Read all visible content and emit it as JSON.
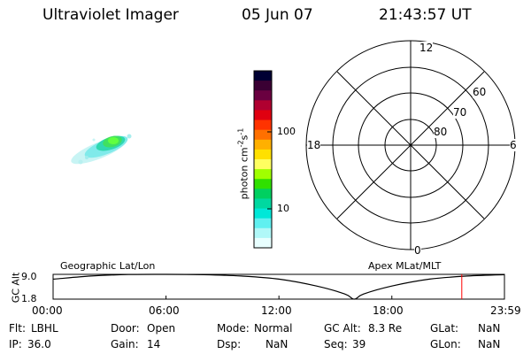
{
  "header": {
    "title": "Ultraviolet Imager",
    "date": "05 Jun 07",
    "time": "21:43:57 UT"
  },
  "colorbar": {
    "label": "photon cm⁻²s⁻¹",
    "label_base": "photon cm",
    "label_exp1": "-2",
    "label_mid": "s",
    "label_exp2": "-1",
    "ticks": [
      "100",
      "10"
    ],
    "colors": [
      "#000033",
      "#3a0033",
      "#6a0040",
      "#b00030",
      "#e00010",
      "#ff3300",
      "#ff7000",
      "#ffb000",
      "#ffe000",
      "#ffff60",
      "#a0ff00",
      "#30e000",
      "#00d060",
      "#00d8a0",
      "#00e8d8",
      "#60f0f0",
      "#b0f8f8",
      "#e8ffff"
    ]
  },
  "polar": {
    "mlt_labels": [
      "12",
      "18",
      "6",
      "0"
    ],
    "lat_labels": [
      "60",
      "70",
      "80"
    ]
  },
  "timeline": {
    "left_title": "Geographic Lat/Lon",
    "right_title": "Apex MLat/MLT",
    "yaxis_label": "GC Alt",
    "y_ticks": [
      "9.0",
      "1.8"
    ],
    "x_ticks": [
      "00:00",
      "06:00",
      "12:00",
      "18:00",
      "23:59"
    ],
    "marker_color": "#ff0000"
  },
  "chart_data": {
    "type": "line",
    "title": "",
    "xlabel": "",
    "ylabel": "GC Alt",
    "xlim": [
      "00:00",
      "23:59"
    ],
    "ylim": [
      1.8,
      9.0
    ],
    "series": [
      {
        "x": [
          "00:00",
          "02:00",
          "04:00",
          "06:00",
          "08:00",
          "10:00",
          "12:00",
          "14:00",
          "15:30",
          "16:00",
          "16:30",
          "18:00",
          "20:00",
          "22:00",
          "23:59"
        ],
        "values": [
          7.6,
          8.5,
          8.95,
          9.0,
          8.9,
          8.5,
          7.6,
          5.6,
          3.3,
          1.8,
          3.3,
          5.6,
          7.6,
          8.5,
          8.9
        ]
      }
    ],
    "current_time_marker": "21:43"
  },
  "status": {
    "row1": [
      {
        "key": "Flt:",
        "val": "LBHL"
      },
      {
        "key": "Door:",
        "val": "Open"
      },
      {
        "key": "Mode:",
        "val": "Normal"
      },
      {
        "key": "GC Alt:",
        "val": "8.3 Re"
      },
      {
        "key": "GLat:",
        "val": "NaN"
      }
    ],
    "row2": [
      {
        "key": "IP:",
        "val": "36.0"
      },
      {
        "key": "Gain:",
        "val": "14"
      },
      {
        "key": "Dsp:",
        "val": "NaN"
      },
      {
        "key": "Seq:",
        "val": "39"
      },
      {
        "key": "GLon:",
        "val": "NaN"
      }
    ]
  }
}
